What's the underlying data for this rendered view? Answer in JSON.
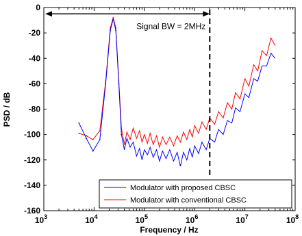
{
  "chart_data": {
    "type": "line",
    "xlabel": "Frequency / Hz",
    "ylabel": "PSD / dB",
    "x_scale": "log",
    "xlim": [
      1000,
      100000000
    ],
    "ylim": [
      -160,
      0
    ],
    "x_ticks": [
      {
        "base": "10",
        "exp": "3"
      },
      {
        "base": "10",
        "exp": "4"
      },
      {
        "base": "10",
        "exp": "5"
      },
      {
        "base": "10",
        "exp": "6"
      },
      {
        "base": "10",
        "exp": "7"
      },
      {
        "base": "10",
        "exp": "8"
      }
    ],
    "y_ticks": [
      "0",
      "-20",
      "-40",
      "-60",
      "-80",
      "-100",
      "-120",
      "-140",
      "-160"
    ],
    "grid": false,
    "legend_position": "bottom-right",
    "annotation": {
      "text": "Signal BW = 2MHz",
      "arrow_from_hz": 1000,
      "arrow_to_hz": 2000000,
      "arrow_y_db": -5,
      "bandwidth_line_hz": 2000000
    },
    "series": [
      {
        "name": "Modulator with proposed CBSC",
        "color": "#0000ff",
        "points": [
          [
            5000,
            -91
          ],
          [
            7000,
            -103
          ],
          [
            9500,
            -113
          ],
          [
            13000,
            -104
          ],
          [
            17000,
            -60
          ],
          [
            21000,
            -18
          ],
          [
            24000,
            -9
          ],
          [
            27000,
            -18
          ],
          [
            31000,
            -60
          ],
          [
            35000,
            -100
          ],
          [
            40000,
            -112
          ],
          [
            45000,
            -103
          ],
          [
            52000,
            -110
          ],
          [
            60000,
            -106
          ],
          [
            70000,
            -117
          ],
          [
            80000,
            -111
          ],
          [
            90000,
            -120
          ],
          [
            100000,
            -112
          ],
          [
            115000,
            -116
          ],
          [
            130000,
            -110
          ],
          [
            150000,
            -118
          ],
          [
            175000,
            -112
          ],
          [
            200000,
            -121
          ],
          [
            230000,
            -113
          ],
          [
            270000,
            -119
          ],
          [
            320000,
            -112
          ],
          [
            380000,
            -121
          ],
          [
            450000,
            -114
          ],
          [
            520000,
            -125
          ],
          [
            600000,
            -114
          ],
          [
            700000,
            -120
          ],
          [
            800000,
            -111
          ],
          [
            900000,
            -118
          ],
          [
            1000000,
            -109
          ],
          [
            1200000,
            -115
          ],
          [
            1400000,
            -106
          ],
          [
            1700000,
            -112
          ],
          [
            2000000,
            -103
          ],
          [
            2500000,
            -106
          ],
          [
            3000000,
            -96
          ],
          [
            3700000,
            -100
          ],
          [
            4500000,
            -89
          ],
          [
            5500000,
            -91
          ],
          [
            6500000,
            -79
          ],
          [
            8000000,
            -82
          ],
          [
            10000000,
            -68
          ],
          [
            12000000,
            -71
          ],
          [
            15000000,
            -56
          ],
          [
            18000000,
            -58
          ],
          [
            22000000,
            -46
          ],
          [
            27000000,
            -46
          ],
          [
            33000000,
            -36
          ],
          [
            40000000,
            -40
          ]
        ]
      },
      {
        "name": "Modulator with conventional CBSC",
        "color": "#ff0000",
        "points": [
          [
            5000,
            -99
          ],
          [
            7000,
            -101
          ],
          [
            9500,
            -104
          ],
          [
            13000,
            -97
          ],
          [
            17000,
            -58
          ],
          [
            21000,
            -16
          ],
          [
            24000,
            -8
          ],
          [
            27000,
            -16
          ],
          [
            31000,
            -58
          ],
          [
            35000,
            -95
          ],
          [
            40000,
            -108
          ],
          [
            45000,
            -98
          ],
          [
            52000,
            -104
          ],
          [
            60000,
            -95
          ],
          [
            70000,
            -103
          ],
          [
            80000,
            -97
          ],
          [
            90000,
            -106
          ],
          [
            100000,
            -100
          ],
          [
            115000,
            -107
          ],
          [
            130000,
            -99
          ],
          [
            150000,
            -108
          ],
          [
            175000,
            -101
          ],
          [
            200000,
            -110
          ],
          [
            230000,
            -102
          ],
          [
            270000,
            -108
          ],
          [
            320000,
            -102
          ],
          [
            380000,
            -109
          ],
          [
            450000,
            -101
          ],
          [
            520000,
            -106
          ],
          [
            600000,
            -98
          ],
          [
            700000,
            -104
          ],
          [
            800000,
            -96
          ],
          [
            900000,
            -102
          ],
          [
            1000000,
            -93
          ],
          [
            1200000,
            -99
          ],
          [
            1400000,
            -90
          ],
          [
            1700000,
            -96
          ],
          [
            2000000,
            -87
          ],
          [
            2500000,
            -92
          ],
          [
            3000000,
            -82
          ],
          [
            3700000,
            -87
          ],
          [
            4500000,
            -75
          ],
          [
            5500000,
            -80
          ],
          [
            6500000,
            -67
          ],
          [
            8000000,
            -72
          ],
          [
            10000000,
            -56
          ],
          [
            12000000,
            -62
          ],
          [
            15000000,
            -45
          ],
          [
            18000000,
            -50
          ],
          [
            22000000,
            -34
          ],
          [
            27000000,
            -38
          ],
          [
            33000000,
            -24
          ],
          [
            40000000,
            -30
          ]
        ]
      }
    ]
  }
}
